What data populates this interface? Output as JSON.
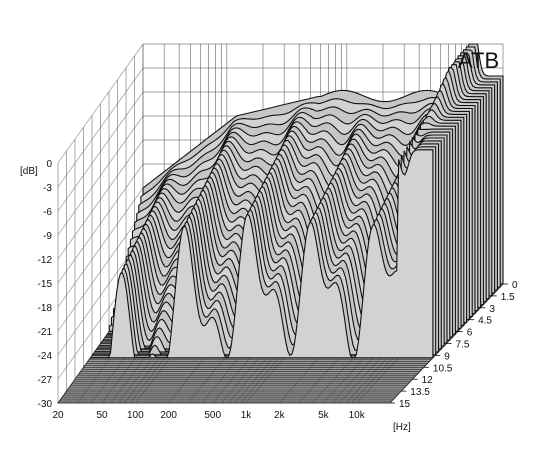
{
  "chart_data": {
    "type": "area",
    "title": "ATB",
    "ylabel": "[dB]",
    "xlabel": "[Hz]",
    "y_ticks": [
      "0",
      "-3",
      "-6",
      "-9",
      "-12",
      "-15",
      "-18",
      "-21",
      "-24",
      "-27",
      "-30"
    ],
    "ylim": [
      -30,
      0
    ],
    "x_ticks": [
      {
        "label": "20",
        "value": 20
      },
      {
        "label": "50",
        "value": 50
      },
      {
        "label": "100",
        "value": 100
      },
      {
        "label": "200",
        "value": 200
      },
      {
        "label": "500",
        "value": 500
      },
      {
        "label": "1k",
        "value": 1000
      },
      {
        "label": "2k",
        "value": 2000
      },
      {
        "label": "5k",
        "value": 5000
      },
      {
        "label": "10k",
        "value": 10000
      }
    ],
    "xlim": [
      20,
      20000
    ],
    "x_scale": "log",
    "z_ticks": [
      "0",
      "1.5",
      "3",
      "4.5",
      "6",
      "7.5",
      "9",
      "10.5",
      "12",
      "13.5",
      "15"
    ],
    "zlim": [
      0,
      15
    ],
    "grid": true,
    "color": "#111111"
  }
}
